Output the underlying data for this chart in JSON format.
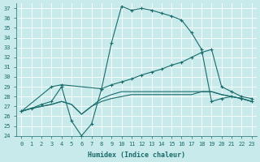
{
  "xlabel": "Humidex (Indice chaleur)",
  "bg_color": "#c8eaea",
  "grid_color": "#ffffff",
  "line_color": "#1a6b6b",
  "xlim": [
    -0.5,
    23.5
  ],
  "ylim": [
    24,
    37.5
  ],
  "xticks": [
    0,
    1,
    2,
    3,
    4,
    5,
    6,
    7,
    8,
    9,
    10,
    11,
    12,
    13,
    14,
    15,
    16,
    17,
    18,
    19,
    20,
    21,
    22,
    23
  ],
  "yticks": [
    24,
    25,
    26,
    27,
    28,
    29,
    30,
    31,
    32,
    33,
    34,
    35,
    36,
    37
  ],
  "series": [
    {
      "marker": "+",
      "linestyle": "-",
      "x": [
        0,
        1,
        2,
        3,
        4,
        5,
        6,
        7,
        8,
        9,
        10,
        11,
        12,
        13,
        14,
        15,
        16,
        17,
        18,
        19,
        20,
        21,
        22,
        23
      ],
      "y": [
        26.5,
        26.8,
        27.2,
        27.5,
        29.0,
        25.5,
        24.0,
        25.2,
        28.8,
        33.5,
        37.2,
        36.8,
        37.0,
        36.8,
        36.5,
        36.2,
        35.8,
        34.5,
        32.8,
        27.5,
        27.8,
        28.0,
        27.8,
        27.5
      ]
    },
    {
      "marker": null,
      "linestyle": "-",
      "x": [
        0,
        1,
        2,
        3,
        4,
        5,
        6,
        7,
        8,
        9,
        10,
        11,
        12,
        13,
        14,
        15,
        16,
        17,
        18,
        19,
        20,
        21,
        22,
        23
      ],
      "y": [
        26.5,
        26.8,
        27.0,
        27.2,
        27.5,
        27.2,
        26.2,
        27.0,
        27.8,
        28.2,
        28.5,
        28.5,
        28.5,
        28.5,
        28.5,
        28.5,
        28.5,
        28.5,
        28.5,
        28.5,
        28.2,
        28.0,
        27.8,
        27.5
      ]
    },
    {
      "marker": "+",
      "linestyle": "-",
      "x": [
        0,
        3,
        4,
        8,
        9,
        10,
        11,
        12,
        13,
        14,
        15,
        16,
        17,
        18,
        19,
        20,
        21,
        22,
        23
      ],
      "y": [
        26.5,
        29.0,
        29.2,
        28.8,
        29.2,
        29.5,
        29.8,
        30.2,
        30.5,
        30.8,
        31.2,
        31.5,
        32.0,
        32.5,
        32.8,
        29.0,
        28.5,
        28.0,
        27.8
      ]
    },
    {
      "marker": null,
      "linestyle": "-",
      "x": [
        0,
        1,
        2,
        3,
        4,
        5,
        6,
        7,
        8,
        9,
        10,
        11,
        12,
        13,
        14,
        15,
        16,
        17,
        18,
        19,
        20,
        21,
        22,
        23
      ],
      "y": [
        26.5,
        26.8,
        27.0,
        27.2,
        27.5,
        27.2,
        26.2,
        27.0,
        27.5,
        27.8,
        28.0,
        28.2,
        28.2,
        28.2,
        28.2,
        28.2,
        28.2,
        28.2,
        28.5,
        28.5,
        28.2,
        28.0,
        27.8,
        27.5
      ]
    }
  ]
}
